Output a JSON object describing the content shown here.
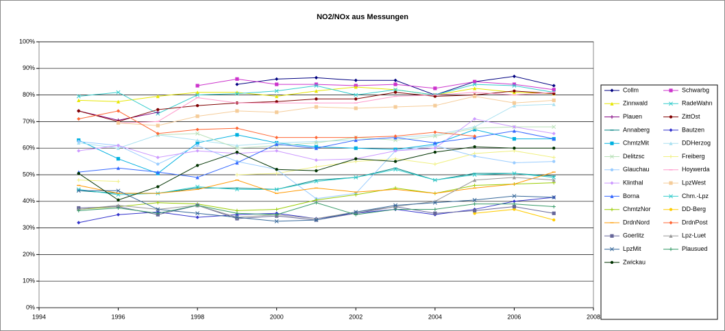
{
  "chart_data": {
    "type": "line",
    "title": "NO2/NOx aus Messungen",
    "x": [
      1995,
      1996,
      1997,
      1998,
      1999,
      2000,
      2001,
      2002,
      2003,
      2004,
      2005,
      2006,
      2007
    ],
    "xlim": [
      1994,
      2008
    ],
    "xticks": [
      1994,
      1996,
      1998,
      2000,
      2002,
      2004,
      2006,
      2008
    ],
    "ylim": [
      0,
      100
    ],
    "yticks": [
      {
        "value": 0,
        "label": "0%"
      },
      {
        "value": 10,
        "label": "10%"
      },
      {
        "value": 20,
        "label": "20%"
      },
      {
        "value": 30,
        "label": "30%"
      },
      {
        "value": 40,
        "label": "40%"
      },
      {
        "value": 50,
        "label": "50%"
      },
      {
        "value": 60,
        "label": "60%"
      },
      {
        "value": 70,
        "label": "70%"
      },
      {
        "value": 80,
        "label": "80%"
      },
      {
        "value": 90,
        "label": "90%"
      },
      {
        "value": 100,
        "label": "100%"
      }
    ],
    "grid": true,
    "legend": "right",
    "series": [
      {
        "name": "Collm",
        "color": "#000080",
        "values": [
          null,
          null,
          null,
          null,
          84,
          86,
          86.5,
          85.5,
          85.5,
          80,
          85,
          87,
          83.5
        ]
      },
      {
        "name": "Schwarbg",
        "color": "#cc33cc",
        "values": [
          null,
          null,
          null,
          83.5,
          86,
          84,
          84,
          83.5,
          84,
          82.5,
          85,
          84,
          82
        ]
      },
      {
        "name": "Zinnwald",
        "color": "#e6e600",
        "values": [
          78,
          77.5,
          79.5,
          81,
          81,
          79.5,
          81.5,
          83,
          82,
          80,
          82.5,
          81,
          80.5
        ]
      },
      {
        "name": "RadeWahn",
        "color": "#33cccc",
        "values": [
          79.5,
          81,
          73,
          80,
          80.5,
          81.5,
          83.5,
          80,
          82,
          80,
          84,
          83.5,
          81
        ]
      },
      {
        "name": "Plauen",
        "color": "#800080",
        "values": [
          74,
          70.5,
          73.5,
          null,
          null,
          null,
          null,
          null,
          null,
          null,
          null,
          null,
          null
        ]
      },
      {
        "name": "ZittOst",
        "color": "#800000",
        "values": [
          74,
          70,
          74.5,
          76,
          77,
          77.5,
          78.5,
          78.5,
          81,
          79.5,
          80,
          81.5,
          80.5
        ]
      },
      {
        "name": "Annaberg",
        "color": "#008080",
        "values": [
          44,
          43,
          43,
          45,
          45,
          44.5,
          48,
          49,
          52.5,
          48,
          50.5,
          50.5,
          49.5
        ]
      },
      {
        "name": "Bautzen",
        "color": "#3333cc",
        "values": [
          32,
          35,
          36,
          34,
          35,
          35.5,
          33.5,
          35.5,
          37,
          35,
          37,
          40,
          41.5
        ]
      },
      {
        "name": "ChmtzMit",
        "color": "#00b0e0",
        "values": [
          63,
          56,
          50.5,
          62,
          65,
          62,
          60.5,
          60,
          59.5,
          61.5,
          67,
          63.5,
          63.5
        ]
      },
      {
        "name": "DDHerzog",
        "color": "#a8e0f0",
        "values": [
          62,
          60,
          65,
          63,
          61,
          62,
          62.5,
          63,
          64,
          65,
          68,
          76,
          76.5
        ]
      },
      {
        "name": "Delitzsc",
        "color": "#b8e0b8",
        "values": [
          null,
          null,
          65,
          65.5,
          60,
          61,
          62,
          64,
          63,
          64.5,
          67.5,
          68,
          68
        ]
      },
      {
        "name": "Freiberg",
        "color": "#f0f080",
        "values": [
          48,
          47.5,
          null,
          null,
          50,
          50.5,
          53,
          55,
          56,
          54,
          58,
          59,
          56.5
        ]
      },
      {
        "name": "Glauchau",
        "color": "#99ccff",
        "values": [
          62.5,
          61,
          54,
          61,
          55,
          52,
          41,
          43,
          59,
          61,
          57,
          54.5,
          55
        ]
      },
      {
        "name": "Hoywerda",
        "color": "#ff99cc",
        "values": [
          null,
          69.5,
          70,
          79,
          77,
          77,
          77,
          77,
          79.5,
          80,
          81,
          80,
          81
        ]
      },
      {
        "name": "Klinthal",
        "color": "#cc99ff",
        "values": [
          59,
          61,
          56.5,
          59,
          58,
          59,
          55.5,
          56,
          59,
          60,
          71,
          68,
          65.5
        ]
      },
      {
        "name": "LpzWest",
        "color": "#f5cc99",
        "values": [
          null,
          69.5,
          68.5,
          72,
          74,
          73.5,
          75.5,
          75,
          75.5,
          76,
          79.5,
          77,
          78
        ]
      },
      {
        "name": "Borna",
        "color": "#3366ff",
        "values": [
          51,
          52.5,
          51,
          49,
          54.5,
          61.5,
          60,
          63,
          64,
          62,
          64,
          66.5,
          63.5
        ]
      },
      {
        "name": "Chm.-Lpz",
        "color": "#33cccc",
        "values": [
          44.5,
          42.5,
          43,
          45.5,
          44.5,
          44.5,
          47.5,
          49,
          52,
          48,
          50,
          50.5,
          49
        ]
      },
      {
        "name": "ChmtzNor",
        "color": "#99cc00",
        "values": [
          37,
          38,
          39.5,
          39,
          36.5,
          37,
          40.5,
          42.5,
          45,
          43,
          46,
          46.5,
          47
        ]
      },
      {
        "name": "DD-Berg",
        "color": "#ffcc00",
        "values": [
          null,
          null,
          null,
          null,
          null,
          null,
          null,
          null,
          null,
          null,
          35.5,
          37,
          33
        ]
      },
      {
        "name": "DrdnNord",
        "color": "#ff9900",
        "values": [
          46,
          43,
          43,
          44.5,
          48,
          43,
          45,
          43.5,
          44.5,
          43,
          45,
          46.5,
          51
        ]
      },
      {
        "name": "DrdnPost",
        "color": "#ff6633",
        "values": [
          71,
          74,
          65.5,
          67,
          67.5,
          64,
          64,
          64,
          64.5,
          66,
          64.5,
          null,
          null
        ]
      },
      {
        "name": "Goerlitz",
        "color": "#666699",
        "values": [
          37.5,
          38,
          35,
          38.5,
          33.5,
          34.5,
          33,
          35.5,
          38,
          35.5,
          36.5,
          38,
          35.5
        ]
      },
      {
        "name": "Lpz-Luet",
        "color": "#969696",
        "values": [
          37,
          38.5,
          37,
          38.5,
          34,
          35,
          33.5,
          36,
          38,
          40,
          48,
          49,
          48
        ]
      },
      {
        "name": "LpzMit",
        "color": "#336699",
        "values": [
          44,
          44,
          37,
          35.5,
          34,
          32.5,
          33,
          36,
          38.5,
          39.5,
          40.5,
          42,
          41.5
        ]
      },
      {
        "name": "Plausued",
        "color": "#339966",
        "values": [
          36.5,
          37.5,
          35.5,
          38.5,
          35.5,
          35,
          39.5,
          35,
          37,
          37,
          39,
          39,
          38
        ]
      },
      {
        "name": "Zwickau",
        "color": "#003300",
        "values": [
          50.5,
          40.5,
          45.5,
          53.5,
          58.5,
          52,
          51.5,
          56,
          55,
          58.5,
          60.5,
          60,
          60
        ]
      }
    ]
  }
}
